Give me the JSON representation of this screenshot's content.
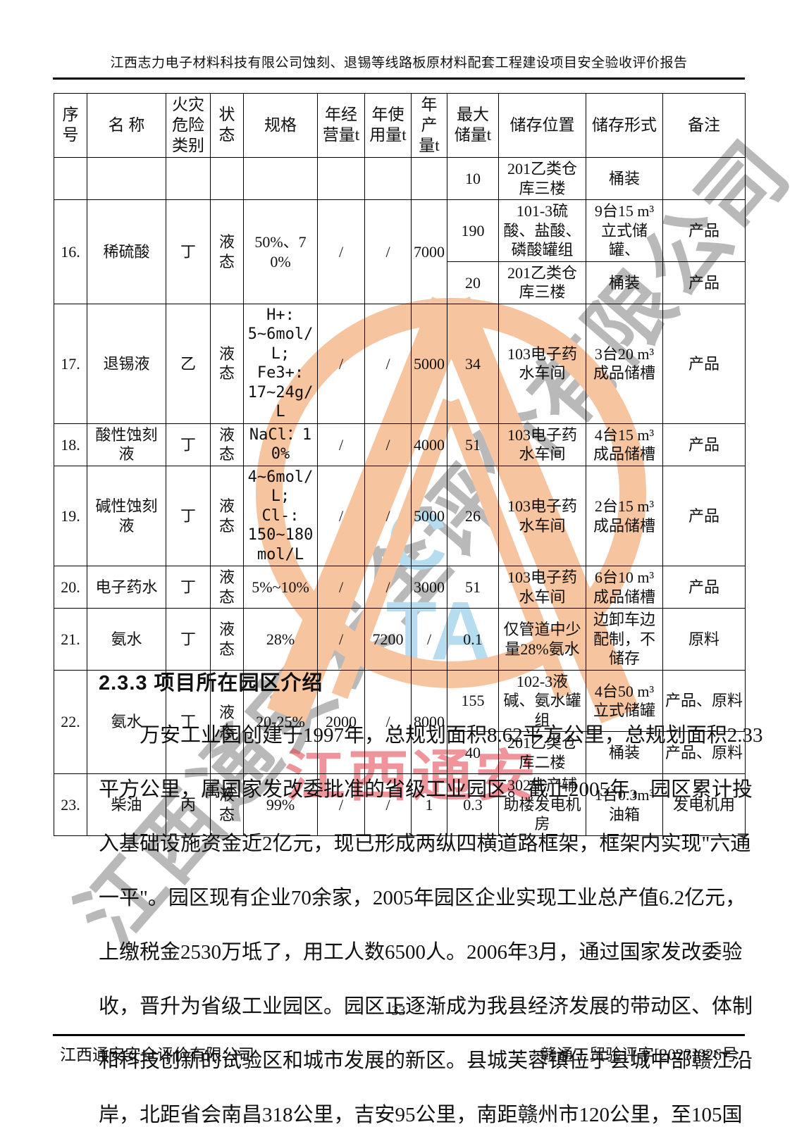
{
  "page": {
    "header_title": "江西志力电子材料科技有限公司蚀刻、退锡等线路板原材料配套工程建设项目安全验收评价报告",
    "page_number": "33",
    "footer_left": "江西通安安全评价有限公司",
    "footer_right": "赣通工贸验评字[2023]026号"
  },
  "watermark": {
    "diagonal_text": "江西通安安全评价有限公司",
    "red_text": "江西通安",
    "blue_letter_top": "C",
    "blue_letter_bottom": "TA",
    "salmon_color": "#f6c49e",
    "gray_color": "#808080",
    "red_color": "#e23c48",
    "blue_color": "#b5dcef"
  },
  "section": {
    "heading": "2.3.3 项目所在园区介绍",
    "lines": [
      "万安工业园创建于1997年，总规划面积8.62平方公里，总规划面积2.33",
      "平方公里，属国家发改委批准的省级工业园区。截止2005年，园区累计投",
      "入基础设施资金近2亿元，现已形成两纵四横道路框架，框架内实现\"六通",
      "一平\"。园区现有企业70余家，2005年园区企业实现工业总产值6.2亿元，",
      "上缴税金2530万坻了，用工人数6500人。2006年3月，通过国家发改委验",
      "收，晋升为省级工业园区。园区正逐渐成为我县经济发展的带动区、体制",
      "和科技创新的试验区和城市发展的新区。县城芙蓉镇位于县城中部赣江沿",
      "岸，北距省会南昌318公里，吉安95公里，南距赣州市120公里，至105国"
    ]
  },
  "table": {
    "headers": [
      "序号",
      "名 称",
      "火灾危险类别",
      "状态",
      "规格",
      "年经营量t",
      "年使用量t",
      "年产量t",
      "最大储量t",
      "储存位置",
      "储存形式",
      "备注"
    ],
    "rows": [
      {
        "cells": [
          {
            "t": ""
          },
          {
            "t": ""
          },
          {
            "t": ""
          },
          {
            "t": ""
          },
          {
            "t": ""
          },
          {
            "t": ""
          },
          {
            "t": ""
          },
          {
            "t": ""
          },
          {
            "t": "10"
          },
          {
            "t": "201乙类仓库三楼"
          },
          {
            "t": "桶装"
          },
          {
            "t": ""
          }
        ]
      },
      {
        "cells": [
          {
            "t": "16.",
            "rs": 2
          },
          {
            "t": "稀硫酸",
            "rs": 2
          },
          {
            "t": "丁",
            "rs": 2
          },
          {
            "t": "液态",
            "rs": 2
          },
          {
            "t": "50%、70%",
            "rs": 2
          },
          {
            "t": "/",
            "rs": 2
          },
          {
            "t": "/",
            "rs": 2
          },
          {
            "t": "7000",
            "rs": 2
          },
          {
            "t": "190"
          },
          {
            "t": "101-3硫酸、盐酸、磷酸罐组"
          },
          {
            "t": "9台15 m³立式储罐、"
          },
          {
            "t": "产品"
          }
        ]
      },
      {
        "cells": [
          {
            "t": "20"
          },
          {
            "t": "201乙类仓库三楼"
          },
          {
            "t": "桶装"
          },
          {
            "t": "产品"
          }
        ]
      },
      {
        "cells": [
          {
            "t": "17."
          },
          {
            "t": "退锡液"
          },
          {
            "t": "乙"
          },
          {
            "t": "液态"
          },
          {
            "t": "H+:\n5~6mol/L;\nFe3+:\n17~24g/L",
            "small": true
          },
          {
            "t": "/"
          },
          {
            "t": "/"
          },
          {
            "t": "5000"
          },
          {
            "t": "34"
          },
          {
            "t": "103电子药水车间"
          },
          {
            "t": "3台20 m³成品储槽"
          },
          {
            "t": "产品"
          }
        ]
      },
      {
        "cells": [
          {
            "t": "18."
          },
          {
            "t": "酸性蚀刻液"
          },
          {
            "t": "丁"
          },
          {
            "t": "液态"
          },
          {
            "t": "NaCl：10%",
            "small": true
          },
          {
            "t": "/"
          },
          {
            "t": "/"
          },
          {
            "t": "4000"
          },
          {
            "t": "51"
          },
          {
            "t": "103电子药水车间"
          },
          {
            "t": "4台15 m³成品储槽"
          },
          {
            "t": "产品"
          }
        ]
      },
      {
        "cells": [
          {
            "t": "19."
          },
          {
            "t": "碱性蚀刻液"
          },
          {
            "t": "丁"
          },
          {
            "t": "液态"
          },
          {
            "t": "4~6mol/L;\nCl-:\n150~180mol/L",
            "small": true
          },
          {
            "t": "/"
          },
          {
            "t": "/"
          },
          {
            "t": "5000"
          },
          {
            "t": "26"
          },
          {
            "t": "103电子药水车间"
          },
          {
            "t": "2台15 m³成品储槽"
          },
          {
            "t": "产品"
          }
        ]
      },
      {
        "cells": [
          {
            "t": "20."
          },
          {
            "t": "电子药水"
          },
          {
            "t": "丁"
          },
          {
            "t": "液态"
          },
          {
            "t": "5%~10%"
          },
          {
            "t": "/"
          },
          {
            "t": "/"
          },
          {
            "t": "3000"
          },
          {
            "t": "51"
          },
          {
            "t": "103电子药水车间"
          },
          {
            "t": "6台10 m³成品储槽"
          },
          {
            "t": "产品"
          }
        ]
      },
      {
        "cells": [
          {
            "t": "21."
          },
          {
            "t": "氨水"
          },
          {
            "t": "丁"
          },
          {
            "t": "液态"
          },
          {
            "t": "28%"
          },
          {
            "t": "/"
          },
          {
            "t": "7200"
          },
          {
            "t": "/"
          },
          {
            "t": "0.1"
          },
          {
            "t": "仅管道中少量28%氨水"
          },
          {
            "t": "边卸车边配制，不储存"
          },
          {
            "t": "原料"
          }
        ]
      },
      {
        "cells": [
          {
            "t": "22.",
            "rs": 2
          },
          {
            "t": "氨水",
            "rs": 2
          },
          {
            "t": "丁",
            "rs": 2
          },
          {
            "t": "液态",
            "rs": 2
          },
          {
            "t": "20-25%",
            "rs": 2
          },
          {
            "t": "2000",
            "rs": 2
          },
          {
            "t": "/",
            "rs": 2
          },
          {
            "t": "8000",
            "rs": 2
          },
          {
            "t": "155"
          },
          {
            "t": "102-3液碱、氨水罐组"
          },
          {
            "t": "4台50 m³立式储罐"
          },
          {
            "t": "产品、原料"
          }
        ]
      },
      {
        "cells": [
          {
            "t": "40"
          },
          {
            "t": "201乙类仓库二楼"
          },
          {
            "t": "桶装"
          },
          {
            "t": "产品、原料"
          }
        ]
      },
      {
        "cells": [
          {
            "t": "23."
          },
          {
            "t": "柴油"
          },
          {
            "t": "丙"
          },
          {
            "t": "液态"
          },
          {
            "t": "99%"
          },
          {
            "t": "/"
          },
          {
            "t": "/"
          },
          {
            "t": "1"
          },
          {
            "t": "0.3"
          },
          {
            "t": "302生产辅助楼发电机房"
          },
          {
            "t": "1台0.3m³油箱"
          },
          {
            "t": "发电机用"
          }
        ]
      }
    ]
  }
}
